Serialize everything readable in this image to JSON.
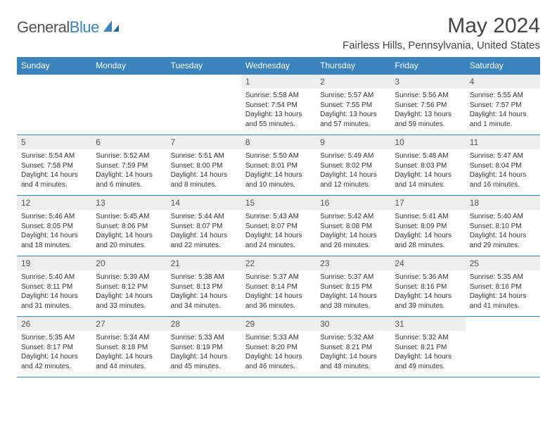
{
  "brand": {
    "text1": "General",
    "text2": "Blue"
  },
  "title": "May 2024",
  "location": "Fairless Hills, Pennsylvania, United States",
  "colors": {
    "header_bg": "#3b83bd",
    "header_fg": "#ffffff",
    "daynum_bg": "#eeeeee",
    "border": "#3b83bd",
    "text": "#333333",
    "title": "#444444"
  },
  "fonts": {
    "title_size": 30,
    "location_size": 15,
    "th_size": 12,
    "body_size": 10
  },
  "dayNames": [
    "Sunday",
    "Monday",
    "Tuesday",
    "Wednesday",
    "Thursday",
    "Friday",
    "Saturday"
  ],
  "firstDayIndex": 3,
  "daysInMonth": 31,
  "days": {
    "1": {
      "sunrise": "5:58 AM",
      "sunset": "7:54 PM",
      "daylight": "13 hours and 55 minutes."
    },
    "2": {
      "sunrise": "5:57 AM",
      "sunset": "7:55 PM",
      "daylight": "13 hours and 57 minutes."
    },
    "3": {
      "sunrise": "5:56 AM",
      "sunset": "7:56 PM",
      "daylight": "13 hours and 59 minutes."
    },
    "4": {
      "sunrise": "5:55 AM",
      "sunset": "7:57 PM",
      "daylight": "14 hours and 1 minute."
    },
    "5": {
      "sunrise": "5:54 AM",
      "sunset": "7:58 PM",
      "daylight": "14 hours and 4 minutes."
    },
    "6": {
      "sunrise": "5:52 AM",
      "sunset": "7:59 PM",
      "daylight": "14 hours and 6 minutes."
    },
    "7": {
      "sunrise": "5:51 AM",
      "sunset": "8:00 PM",
      "daylight": "14 hours and 8 minutes."
    },
    "8": {
      "sunrise": "5:50 AM",
      "sunset": "8:01 PM",
      "daylight": "14 hours and 10 minutes."
    },
    "9": {
      "sunrise": "5:49 AM",
      "sunset": "8:02 PM",
      "daylight": "14 hours and 12 minutes."
    },
    "10": {
      "sunrise": "5:48 AM",
      "sunset": "8:03 PM",
      "daylight": "14 hours and 14 minutes."
    },
    "11": {
      "sunrise": "5:47 AM",
      "sunset": "8:04 PM",
      "daylight": "14 hours and 16 minutes."
    },
    "12": {
      "sunrise": "5:46 AM",
      "sunset": "8:05 PM",
      "daylight": "14 hours and 18 minutes."
    },
    "13": {
      "sunrise": "5:45 AM",
      "sunset": "8:06 PM",
      "daylight": "14 hours and 20 minutes."
    },
    "14": {
      "sunrise": "5:44 AM",
      "sunset": "8:07 PM",
      "daylight": "14 hours and 22 minutes."
    },
    "15": {
      "sunrise": "5:43 AM",
      "sunset": "8:07 PM",
      "daylight": "14 hours and 24 minutes."
    },
    "16": {
      "sunrise": "5:42 AM",
      "sunset": "8:08 PM",
      "daylight": "14 hours and 26 minutes."
    },
    "17": {
      "sunrise": "5:41 AM",
      "sunset": "8:09 PM",
      "daylight": "14 hours and 28 minutes."
    },
    "18": {
      "sunrise": "5:40 AM",
      "sunset": "8:10 PM",
      "daylight": "14 hours and 29 minutes."
    },
    "19": {
      "sunrise": "5:40 AM",
      "sunset": "8:11 PM",
      "daylight": "14 hours and 31 minutes."
    },
    "20": {
      "sunrise": "5:39 AM",
      "sunset": "8:12 PM",
      "daylight": "14 hours and 33 minutes."
    },
    "21": {
      "sunrise": "5:38 AM",
      "sunset": "8:13 PM",
      "daylight": "14 hours and 34 minutes."
    },
    "22": {
      "sunrise": "5:37 AM",
      "sunset": "8:14 PM",
      "daylight": "14 hours and 36 minutes."
    },
    "23": {
      "sunrise": "5:37 AM",
      "sunset": "8:15 PM",
      "daylight": "14 hours and 38 minutes."
    },
    "24": {
      "sunrise": "5:36 AM",
      "sunset": "8:16 PM",
      "daylight": "14 hours and 39 minutes."
    },
    "25": {
      "sunrise": "5:35 AM",
      "sunset": "8:16 PM",
      "daylight": "14 hours and 41 minutes."
    },
    "26": {
      "sunrise": "5:35 AM",
      "sunset": "8:17 PM",
      "daylight": "14 hours and 42 minutes."
    },
    "27": {
      "sunrise": "5:34 AM",
      "sunset": "8:18 PM",
      "daylight": "14 hours and 44 minutes."
    },
    "28": {
      "sunrise": "5:33 AM",
      "sunset": "8:19 PM",
      "daylight": "14 hours and 45 minutes."
    },
    "29": {
      "sunrise": "5:33 AM",
      "sunset": "8:20 PM",
      "daylight": "14 hours and 46 minutes."
    },
    "30": {
      "sunrise": "5:32 AM",
      "sunset": "8:21 PM",
      "daylight": "14 hours and 48 minutes."
    },
    "31": {
      "sunrise": "5:32 AM",
      "sunset": "8:21 PM",
      "daylight": "14 hours and 49 minutes."
    }
  },
  "labels": {
    "sunrise": "Sunrise:",
    "sunset": "Sunset:",
    "daylight": "Daylight:"
  }
}
